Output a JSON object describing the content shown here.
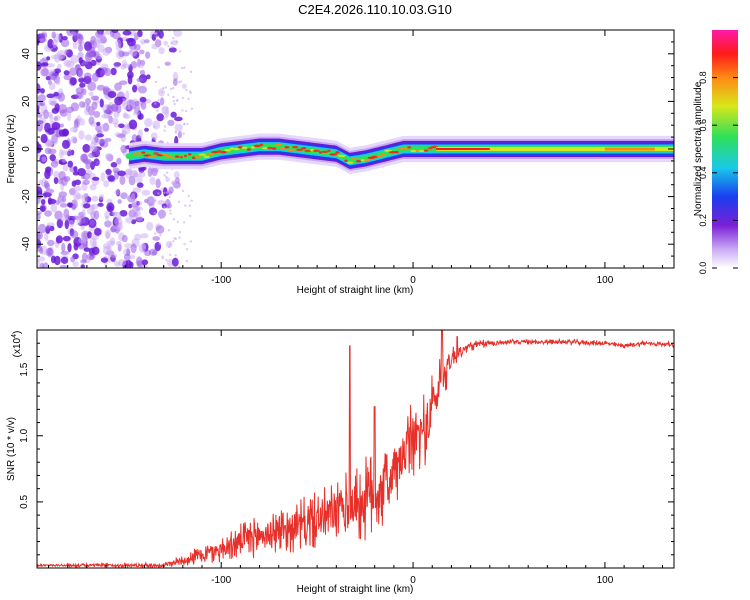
{
  "title": "C2E4.2026.110.10.03.G10",
  "colors": {
    "snr_line": "#e8302a",
    "spectrogram_core": "#ff2a1a",
    "spectrogram_halo": "#6a1bd8",
    "noise_dots": "#7a33e0"
  },
  "chart_data": [
    {
      "type": "heatmap",
      "name": "spectrogram",
      "xlabel": "Height of straight line (km)",
      "ylabel": "Frequency (Hz)",
      "xlim": [
        -196,
        136
      ],
      "ylim": [
        -50,
        50
      ],
      "xticks": [
        -100,
        0,
        100
      ],
      "xtick_labels": [
        "-100",
        "0",
        "100"
      ],
      "yticks": [
        -40,
        -20,
        0,
        20,
        40
      ],
      "ytick_labels": [
        "-40",
        "-20",
        "0",
        "20",
        "40"
      ],
      "noise_region_end_km": -125,
      "trace": {
        "x": [
          -148,
          -140,
          -130,
          -120,
          -110,
          -100,
          -90,
          -80,
          -70,
          -60,
          -50,
          -40,
          -33,
          -25,
          -15,
          -5,
          0,
          10,
          20,
          40,
          60,
          80,
          100,
          120,
          136
        ],
        "y": [
          -3,
          -2,
          -3,
          -3,
          -3,
          -1,
          0,
          1,
          1,
          0,
          -1,
          -2,
          -5,
          -4,
          -2,
          0,
          0,
          0,
          0,
          0,
          0,
          0,
          0,
          0,
          0
        ]
      },
      "colorbar": {
        "label": "Normalized spectral amplitude",
        "range": [
          0,
          1
        ],
        "ticks": [
          0.0,
          0.2,
          0.4,
          0.6,
          0.8
        ],
        "tick_labels": [
          "0.0",
          "0.2",
          "0.4",
          "0.6",
          "0.8"
        ],
        "colormap": [
          "#ffffff",
          "#7a1fd6",
          "#1a3ef0",
          "#19c9e8",
          "#2ee05a",
          "#d8e61a",
          "#ff8a14",
          "#ff1a1a",
          "#ff1aa8"
        ]
      }
    },
    {
      "type": "line",
      "name": "snr",
      "xlabel": "Height of straight line (km)",
      "ylabel": "SNR (10 * v/v)",
      "y_multiplier_label": "(x10",
      "y_multiplier_exponent": "4",
      "y_multiplier_close": ")",
      "xlim": [
        -196,
        136
      ],
      "ylim": [
        0,
        1.8
      ],
      "xticks": [
        -100,
        0,
        100
      ],
      "xtick_labels": [
        "-100",
        "0",
        "100"
      ],
      "yticks": [
        0.5,
        1.0,
        1.5
      ],
      "ytick_labels": [
        "0.5",
        "1.0",
        "1.5"
      ],
      "envelope": {
        "x": [
          -196,
          -130,
          -120,
          -110,
          -100,
          -90,
          -80,
          -70,
          -60,
          -50,
          -40,
          -30,
          -20,
          -10,
          -5,
          0,
          5,
          10,
          15,
          20,
          25,
          30,
          40,
          50,
          60,
          80,
          100,
          110,
          120,
          136
        ],
        "mean": [
          0.02,
          0.02,
          0.06,
          0.1,
          0.14,
          0.2,
          0.24,
          0.28,
          0.32,
          0.36,
          0.42,
          0.48,
          0.55,
          0.7,
          0.85,
          0.98,
          1.02,
          1.2,
          1.45,
          1.58,
          1.64,
          1.68,
          1.7,
          1.71,
          1.71,
          1.71,
          1.7,
          1.68,
          1.7,
          1.69
        ],
        "spread": [
          0.01,
          0.02,
          0.05,
          0.08,
          0.1,
          0.14,
          0.16,
          0.18,
          0.2,
          0.22,
          0.25,
          0.3,
          0.35,
          0.3,
          0.28,
          0.32,
          0.3,
          0.28,
          0.22,
          0.12,
          0.06,
          0.04,
          0.03,
          0.02,
          0.02,
          0.02,
          0.02,
          0.02,
          0.02,
          0.02
        ]
      },
      "spikes": [
        {
          "x": -33,
          "y": 1.68
        },
        {
          "x": -20,
          "y": 1.22
        },
        {
          "x": 15,
          "y": 1.8
        },
        {
          "x": 23,
          "y": 1.75
        }
      ]
    }
  ]
}
